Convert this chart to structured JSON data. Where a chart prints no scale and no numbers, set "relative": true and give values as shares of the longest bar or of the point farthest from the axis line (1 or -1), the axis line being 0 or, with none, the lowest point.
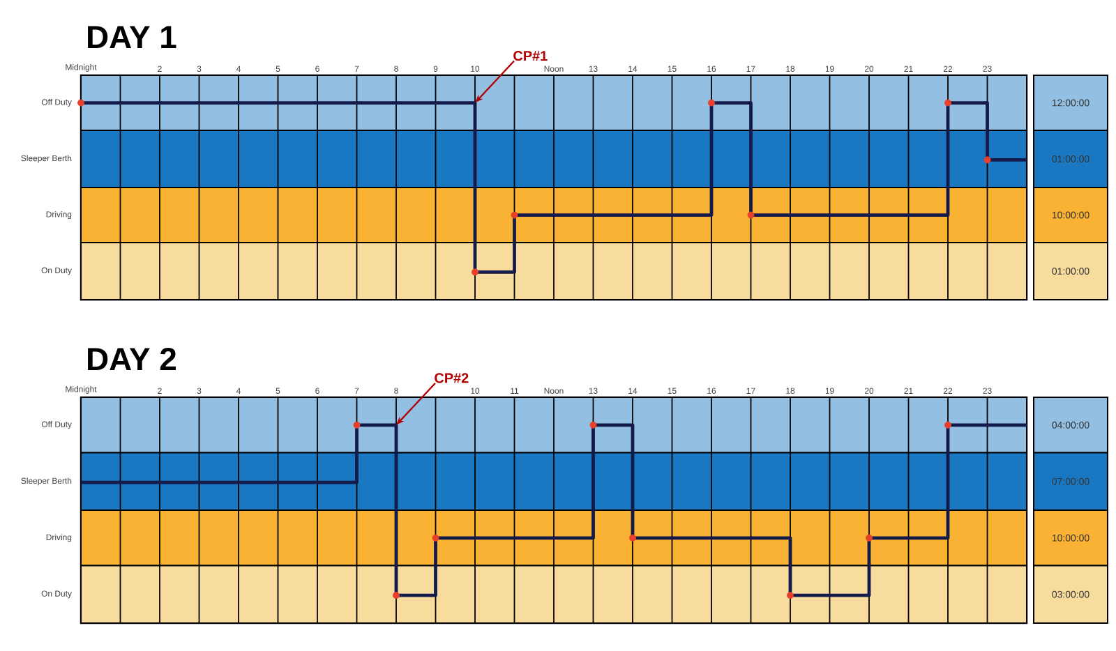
{
  "chart_data": [
    {
      "type": "step",
      "title": "DAY 1",
      "relative": true,
      "xlim": [
        0,
        24
      ],
      "xticks": [
        {
          "value": 0,
          "label": "Midnight"
        },
        {
          "value": 1,
          "label": null
        },
        2,
        3,
        4,
        5,
        6,
        7,
        8,
        9,
        10,
        {
          "value": 11,
          "label": null
        },
        {
          "value": 12,
          "label": "Noon"
        },
        13,
        14,
        15,
        16,
        17,
        18,
        19,
        20,
        21,
        22,
        23,
        {
          "value": 24,
          "label": null
        }
      ],
      "grid": "x",
      "bands": [
        {
          "axis": "y",
          "from": 0.86,
          "to": 1.14,
          "color": "#93bfe3",
          "label": "Off Duty"
        },
        {
          "axis": "y",
          "from": 0.57,
          "to": 0.86,
          "color": "#1a78c2",
          "label": "Sleeper Berth"
        },
        {
          "axis": "y",
          "from": 0.29,
          "to": 0.57,
          "color": "#f9b233",
          "label": "Driving"
        },
        {
          "axis": "y",
          "from": 0,
          "to": 0.29,
          "color": "#f7dc9e",
          "label": "On Duty"
        }
      ],
      "annotations": [
        {
          "text": "CP#1",
          "x": 10,
          "y": 1
        },
        "12:00:00",
        "01:00:00",
        "10:00:00",
        "01:00:00"
      ],
      "series": [
        {
          "color": "#141a4a",
          "x": [
            0,
            10,
            11,
            16,
            17,
            22,
            23,
            24
          ],
          "values": [
            1,
            0.14,
            0.43,
            1,
            0.43,
            1,
            0.71,
            0.71
          ]
        },
        {
          "type": "scatter",
          "color": "#e8402a",
          "marker": "circle",
          "x": [
            0,
            10,
            11,
            16,
            17,
            22,
            23
          ],
          "values": [
            1,
            0.14,
            0.43,
            1,
            0.43,
            1,
            0.71
          ]
        }
      ]
    },
    {
      "type": "step",
      "title": "DAY 2",
      "relative": true,
      "xlim": [
        0,
        24
      ],
      "xticks": [
        {
          "value": 0,
          "label": "Midnight"
        },
        {
          "value": 1,
          "label": null
        },
        2,
        3,
        4,
        5,
        6,
        7,
        8,
        {
          "value": 9,
          "label": null
        },
        10,
        11,
        {
          "value": 12,
          "label": "Noon"
        },
        13,
        14,
        15,
        16,
        17,
        18,
        19,
        20,
        21,
        22,
        23,
        {
          "value": 24,
          "label": null
        }
      ],
      "grid": "x",
      "bands": [
        {
          "axis": "y",
          "from": 0.86,
          "to": 1.14,
          "color": "#93bfe3",
          "label": "Off Duty"
        },
        {
          "axis": "y",
          "from": 0.57,
          "to": 0.86,
          "color": "#1a78c2",
          "label": "Sleeper Berth"
        },
        {
          "axis": "y",
          "from": 0.29,
          "to": 0.57,
          "color": "#f9b233",
          "label": "Driving"
        },
        {
          "axis": "y",
          "from": 0,
          "to": 0.29,
          "color": "#f7dc9e",
          "label": "On Duty"
        }
      ],
      "annotations": [
        {
          "text": "CP#2",
          "x": 8,
          "y": 1
        },
        "04:00:00",
        "07:00:00",
        "10:00:00",
        "03:00:00"
      ],
      "series": [
        {
          "color": "#141a4a",
          "x": [
            0,
            7,
            8,
            9,
            13,
            14,
            18,
            20,
            22,
            24
          ],
          "values": [
            0.71,
            1,
            0.14,
            0.43,
            1,
            0.43,
            0.14,
            0.43,
            1,
            1
          ]
        },
        {
          "type": "scatter",
          "color": "#e8402a",
          "marker": "circle",
          "x": [
            7,
            8,
            9,
            13,
            14,
            18,
            20,
            22
          ],
          "values": [
            1,
            0.14,
            0.43,
            1,
            0.43,
            0.14,
            0.43,
            1
          ]
        }
      ]
    }
  ]
}
